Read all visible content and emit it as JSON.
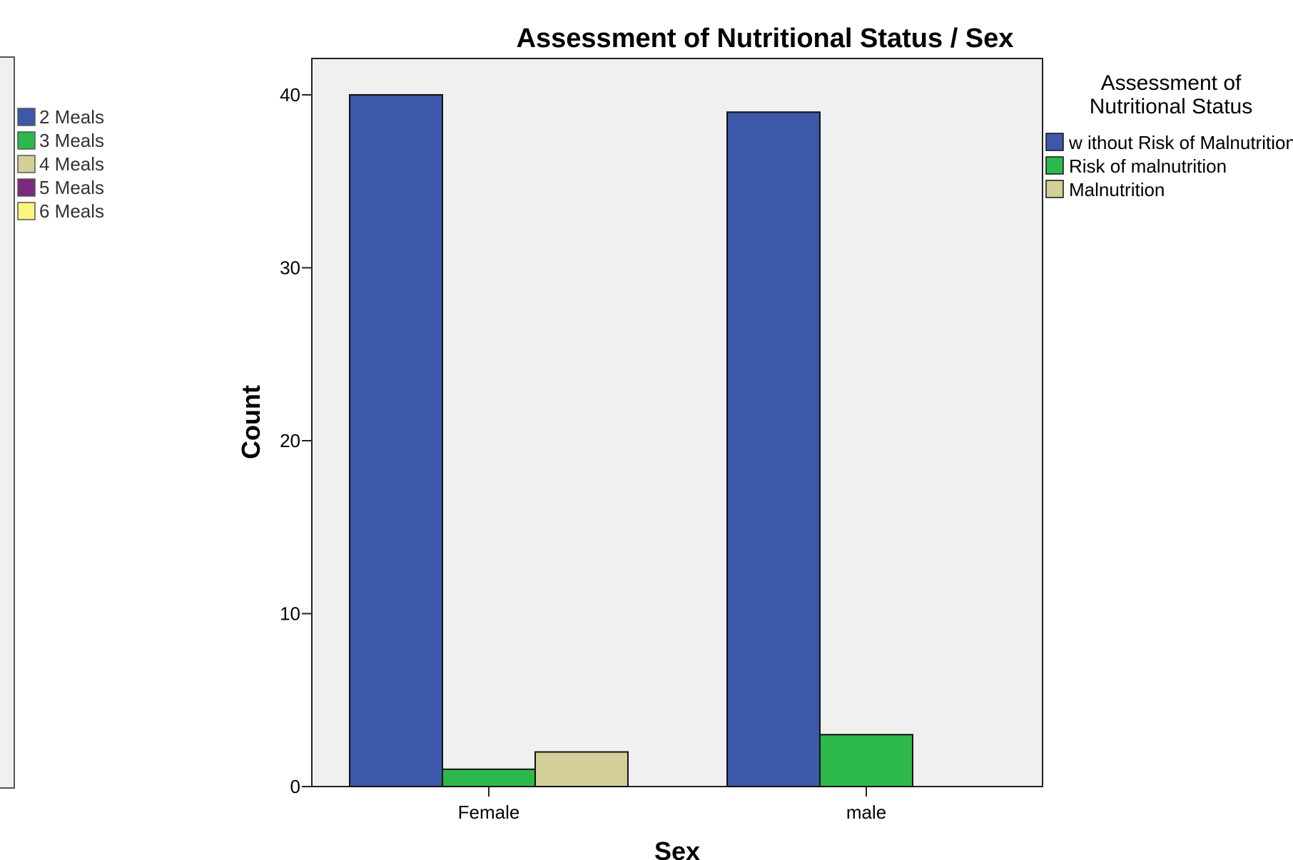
{
  "chart_data": [
    {
      "type": "bar",
      "partial": true,
      "legend": {
        "items": [
          {
            "label": "2  Meals",
            "color": "#3c58a8"
          },
          {
            "label": "3  Meals",
            "color": "#2db84b"
          },
          {
            "label": "4  Meals",
            "color": "#d3cf98"
          },
          {
            "label": "5  Meals",
            "color": "#7b2a7f"
          },
          {
            "label": "6  Meals",
            "color": "#fbf47d"
          }
        ]
      }
    },
    {
      "type": "bar",
      "title": "Assessment of Nutritional Status / Sex",
      "xlabel": "Sex",
      "ylabel": "Count",
      "categories": [
        "Female",
        "male"
      ],
      "ylim": [
        0,
        42
      ],
      "yticks": [
        0,
        10,
        20,
        30,
        40
      ],
      "grid": false,
      "legend_placement": "right",
      "legend_title": "Assessment of Nutritional Status",
      "series": [
        {
          "name": "w ithout Risk of Malnutrition",
          "color": "#3c58a8",
          "values": [
            40,
            39
          ]
        },
        {
          "name": "Risk of malnutrition",
          "color": "#2db84b",
          "values": [
            1,
            3
          ]
        },
        {
          "name": "Malnutrition",
          "color": "#d3cf98",
          "values": [
            2,
            0
          ]
        }
      ]
    }
  ]
}
